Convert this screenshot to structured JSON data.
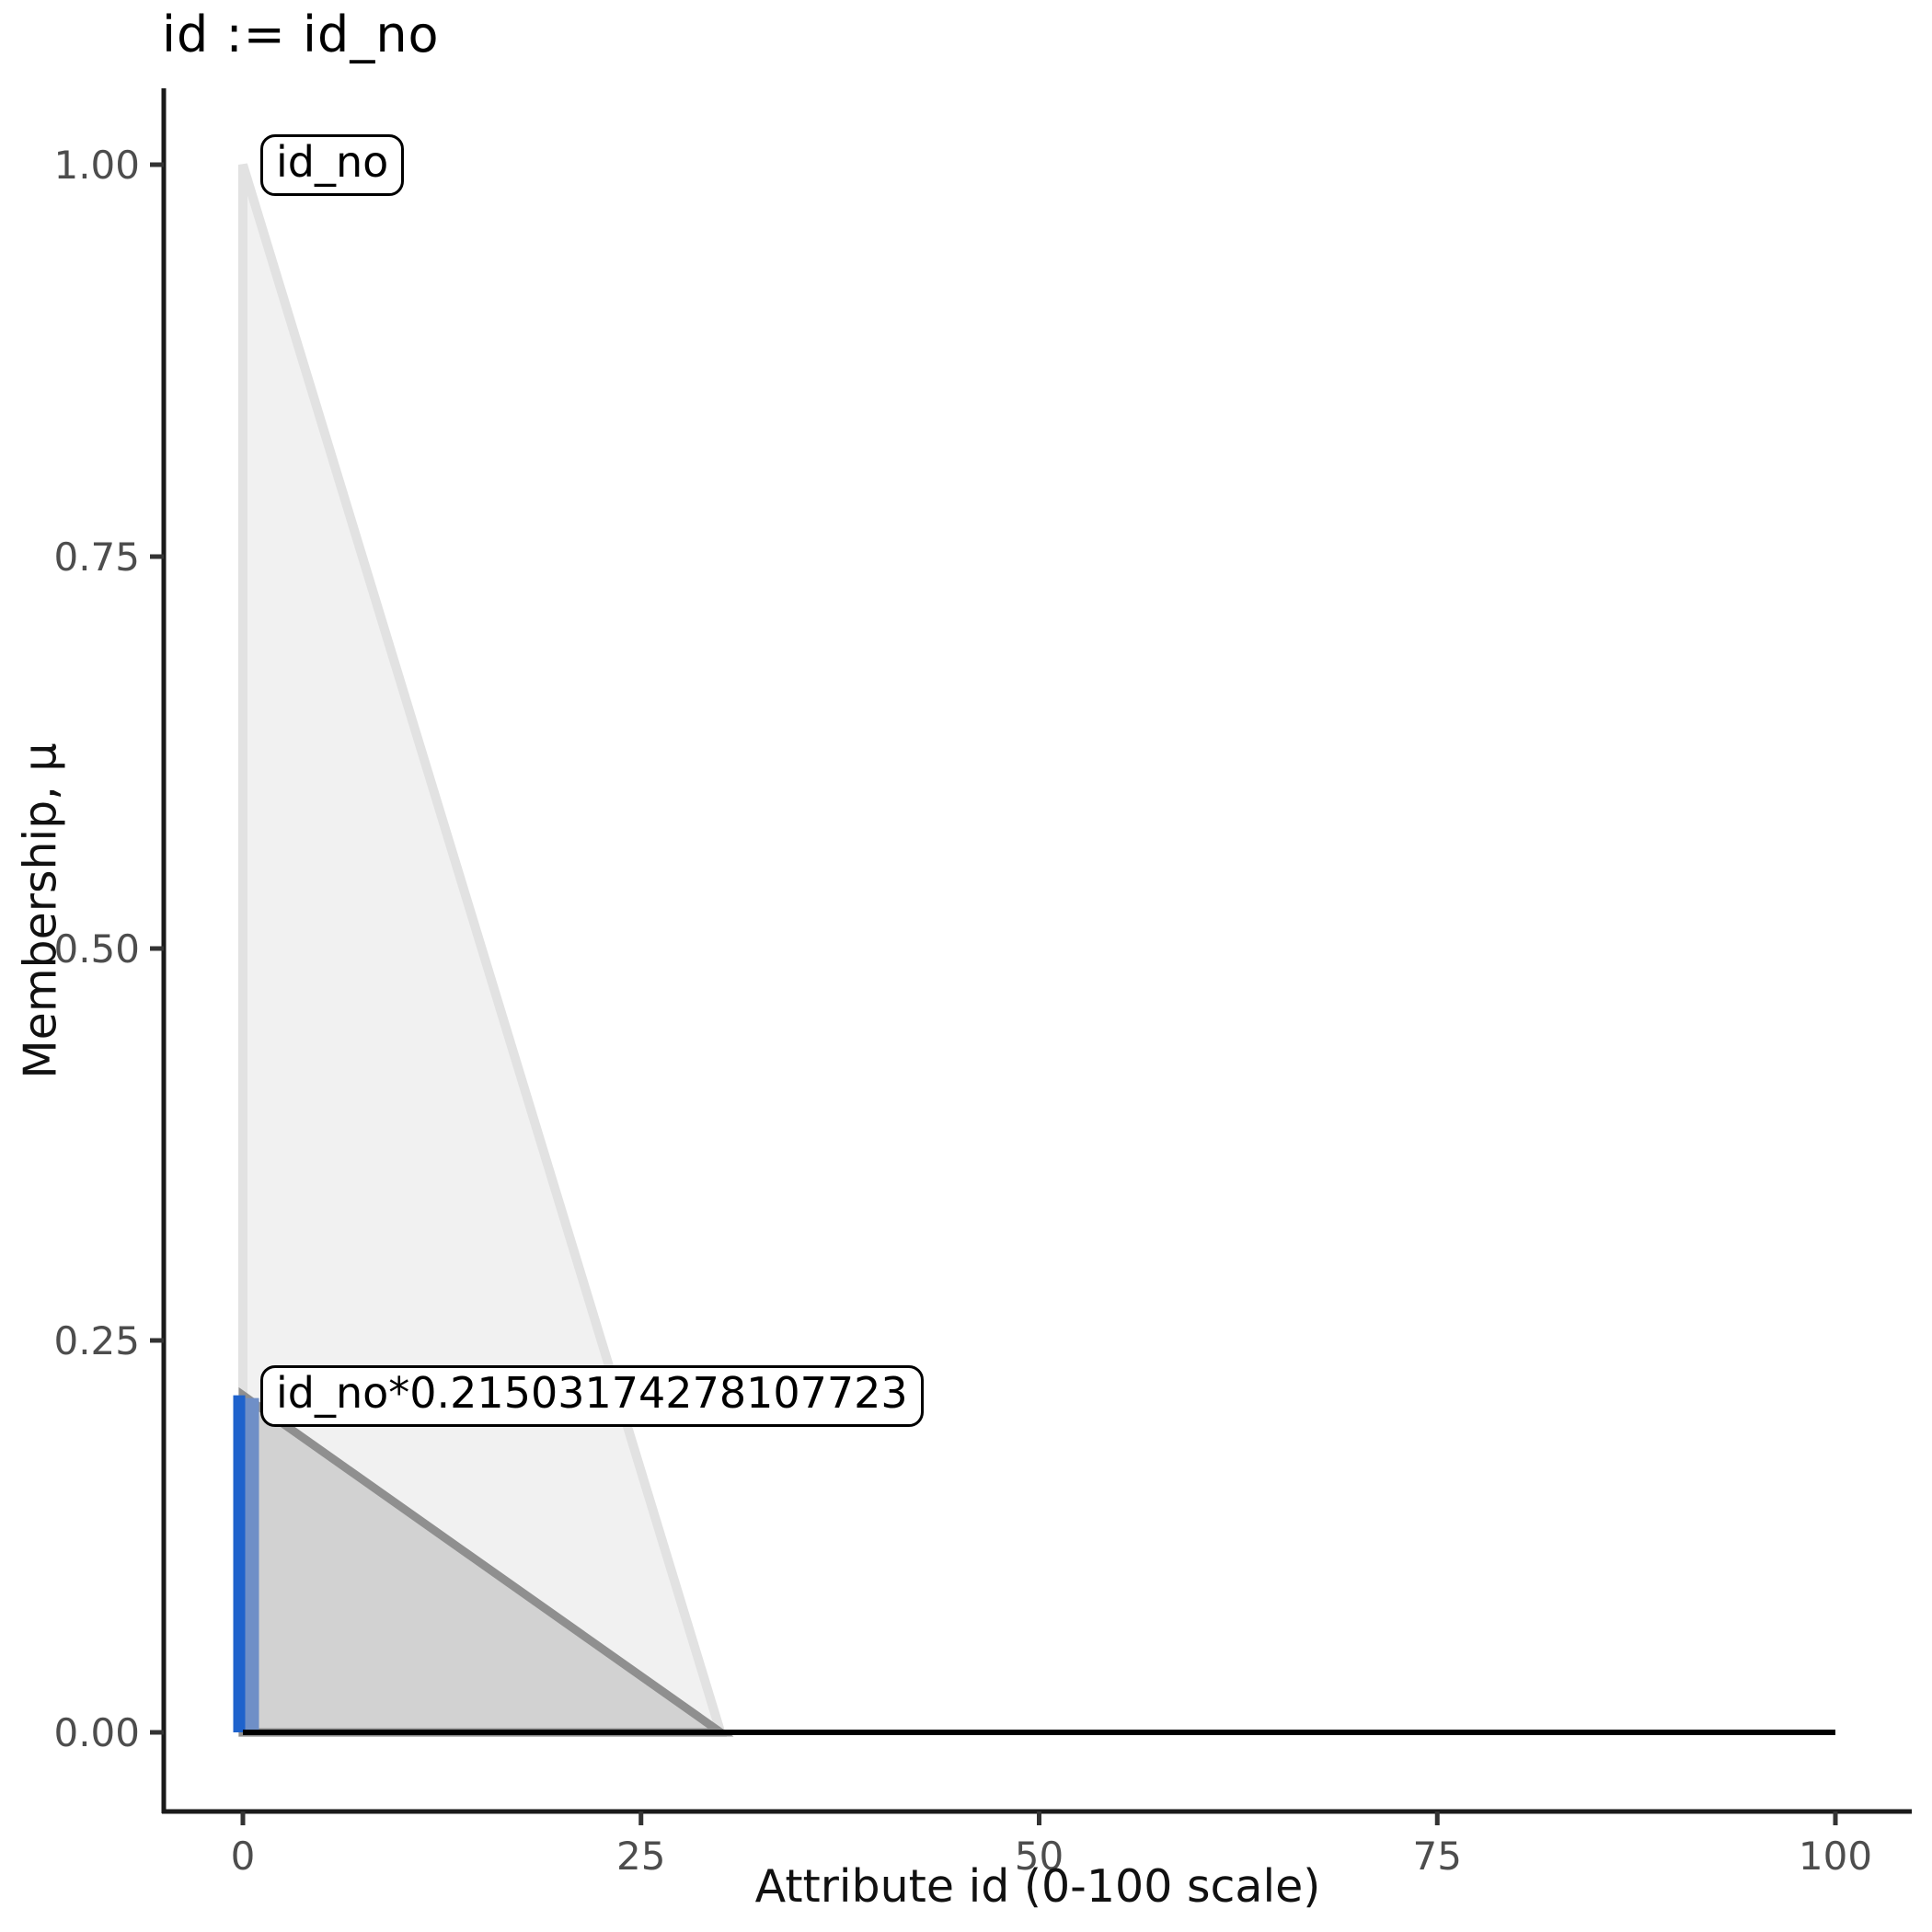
{
  "title": "id := id_no",
  "chart_data": {
    "type": "line",
    "title": "id := id_no",
    "xlabel": "Attribute id (0-100 scale)",
    "ylabel": "Membership, μ",
    "xlim": [
      -5,
      105
    ],
    "ylim": [
      -0.05,
      1.05
    ],
    "x_ticks": [
      0,
      25,
      50,
      75,
      100
    ],
    "y_ticks": [
      "0.00",
      "0.25",
      "0.50",
      "0.75",
      "1.00"
    ],
    "grid": false,
    "legend": "none",
    "series": [
      {
        "name": "id_no",
        "description": "full membership function triangle",
        "points": [
          [
            0,
            1.0
          ],
          [
            30,
            0
          ],
          [
            100,
            0
          ]
        ],
        "line_color": "#e2e2e2",
        "fill_color": "#f1f1f1"
      },
      {
        "name": "id_no*0.21503174278107723",
        "description": "membership function scaled by firing strength 0.21503174278107723",
        "points": [
          [
            0,
            0.21503174278107723
          ],
          [
            30,
            0
          ],
          [
            100,
            0
          ]
        ],
        "line_color": "#8f8f8f",
        "fill_color": "#d2d2d2"
      },
      {
        "name": "zero-baseline",
        "points": [
          [
            0,
            0
          ],
          [
            100,
            0
          ]
        ],
        "line_color": "#000000"
      },
      {
        "name": "activation-level-line",
        "description": "vertical blue line at x=0 up to firing strength",
        "points": [
          [
            0,
            0
          ],
          [
            0,
            0.21503174278107723
          ]
        ],
        "line_color": "#1e62cc",
        "secondary_color": "#6f8fc7"
      }
    ],
    "annotations": [
      {
        "text": "id_no",
        "x": 0,
        "y": 1.0
      },
      {
        "text": "id_no*0.21503174278107723",
        "x": 0,
        "y": 0.21503174278107723
      }
    ]
  },
  "colors": {
    "spine": "#1a1a1a",
    "tick": "#333333",
    "tick_label": "#4d4d4d",
    "title": "#000000",
    "big_triangle_fill": "#f1f1f1",
    "big_triangle_line": "#e2e2e2",
    "small_triangle_fill": "#d2d2d2",
    "small_triangle_line": "#8f8f8f",
    "baseline": "#000000",
    "activation_blue": "#1e62cc",
    "activation_blue_light": "#6f8fc7"
  }
}
